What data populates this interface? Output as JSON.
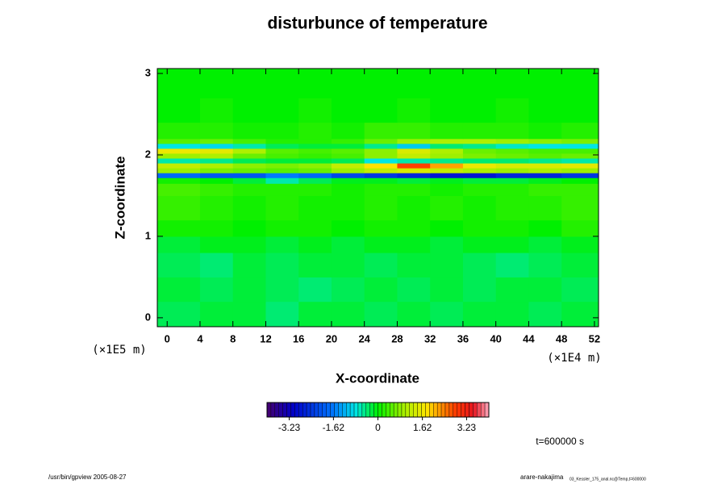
{
  "chart_data": {
    "type": "heatmap",
    "title": "disturbunce of temperature",
    "x_label": "X-coordinate",
    "y_label": "Z-coordinate",
    "x_unit": "(×1E4 m)",
    "y_unit": "(×1E5 m)",
    "time_label": "t=600000 s",
    "footer_left": "/usr/bin/gpview 2005-08-27",
    "footer_right": "arare-nakajima",
    "footer_right_small": "03_Kessler_175_anal.nc@Temp,t=600000",
    "xlim": [
      -1.2,
      52.5
    ],
    "ylim": [
      -0.11,
      3.06
    ],
    "xticks": [
      0,
      4,
      8,
      12,
      16,
      20,
      24,
      28,
      32,
      36,
      40,
      44,
      48,
      52
    ],
    "yticks": [
      0,
      1,
      2,
      3
    ],
    "x_bins": [
      -1.2,
      4,
      8,
      12,
      16,
      20,
      24,
      28,
      32,
      36,
      40,
      44,
      48,
      52.5
    ],
    "z_bins": [
      -0.11,
      0.2,
      0.5,
      0.8,
      1.0,
      1.2,
      1.5,
      1.65,
      1.72,
      1.78,
      1.84,
      1.9,
      1.96,
      2.02,
      2.08,
      2.14,
      2.2,
      2.4,
      2.7,
      3.06
    ],
    "values": [
      [
        -0.3,
        -0.2,
        -0.2,
        -0.4,
        -0.2,
        -0.2,
        -0.3,
        -0.2,
        -0.3,
        -0.2,
        -0.2,
        -0.3,
        -0.2
      ],
      [
        -0.2,
        -0.3,
        -0.2,
        -0.3,
        -0.4,
        -0.3,
        -0.2,
        -0.3,
        -0.2,
        -0.3,
        -0.2,
        -0.2,
        -0.3
      ],
      [
        -0.3,
        -0.4,
        -0.2,
        -0.3,
        -0.2,
        -0.2,
        -0.3,
        -0.2,
        -0.2,
        -0.3,
        -0.4,
        -0.3,
        -0.2
      ],
      [
        -0.2,
        -0.1,
        -0.1,
        -0.2,
        -0.1,
        -0.2,
        -0.1,
        -0.1,
        -0.2,
        -0.1,
        -0.1,
        -0.2,
        -0.1
      ],
      [
        0.1,
        0.1,
        0,
        0.1,
        0.1,
        0,
        0.1,
        0.1,
        0,
        0.1,
        0.1,
        0,
        0.2
      ],
      [
        0.3,
        0.2,
        0.1,
        0.2,
        0.1,
        0.1,
        0.2,
        0.1,
        0.2,
        0.1,
        0.2,
        0.2,
        0.3
      ],
      [
        0.4,
        0.3,
        0.2,
        0.2,
        0.2,
        0.1,
        0.2,
        0.2,
        0.1,
        0.2,
        0.2,
        0.3,
        0.3
      ],
      [
        0.1,
        0,
        -0.2,
        -0.6,
        -0.3,
        -0.1,
        -0.1,
        -0.2,
        -0.1,
        -0.2,
        -0.2,
        -0.1,
        0
      ],
      [
        -1.8,
        -2.0,
        -2.0,
        -1.6,
        -1.8,
        -2.2,
        -2.4,
        -2.6,
        -2.8,
        -2.8,
        -2.6,
        -2.6,
        -2.4
      ],
      [
        0.9,
        0.7,
        0.6,
        0.5,
        0.6,
        0.9,
        1.2,
        1.4,
        1.2,
        1.0,
        0.9,
        1.0,
        0.9
      ],
      [
        1.2,
        1.0,
        0.8,
        0.7,
        0.8,
        1.2,
        1.8,
        2.8,
        2.2,
        1.6,
        1.4,
        1.4,
        1.5
      ],
      [
        -0.6,
        -0.5,
        -0.3,
        -0.2,
        -0.2,
        -0.3,
        -0.8,
        -0.6,
        -0.5,
        -0.4,
        -0.4,
        -0.5,
        -0.6
      ],
      [
        0.9,
        1.0,
        0.6,
        0.4,
        0.3,
        0.4,
        0.8,
        1.2,
        0.9,
        0.7,
        0.6,
        0.5,
        0.6
      ],
      [
        1.6,
        1.5,
        1.0,
        0.5,
        0.4,
        0.5,
        0.8,
        1.4,
        1.0,
        0.6,
        0.5,
        0.4,
        0.4
      ],
      [
        -0.8,
        -0.9,
        -0.6,
        -0.3,
        -0.2,
        -0.2,
        -0.5,
        -1.0,
        -0.4,
        -0.5,
        -0.7,
        -0.8,
        -0.8
      ],
      [
        0.5,
        0.6,
        0.4,
        0.2,
        0.2,
        0.3,
        0.6,
        0.9,
        1.0,
        1.0,
        0.9,
        0.8,
        0.7
      ],
      [
        0.2,
        0.2,
        0.1,
        0.1,
        0.2,
        0.1,
        0.3,
        0.3,
        0.2,
        0.2,
        0.2,
        0.1,
        0.2
      ],
      [
        0,
        0.1,
        0,
        0,
        0.1,
        0,
        0,
        0.1,
        0,
        0,
        0.1,
        0,
        0
      ],
      [
        0,
        0,
        0,
        0,
        0,
        0,
        0,
        0,
        0,
        0,
        0,
        0,
        0
      ]
    ],
    "colorbar": {
      "lim": [
        -4.04,
        4.04
      ],
      "ticks": [
        -3.23,
        -1.62,
        0,
        1.62,
        3.23
      ]
    }
  }
}
